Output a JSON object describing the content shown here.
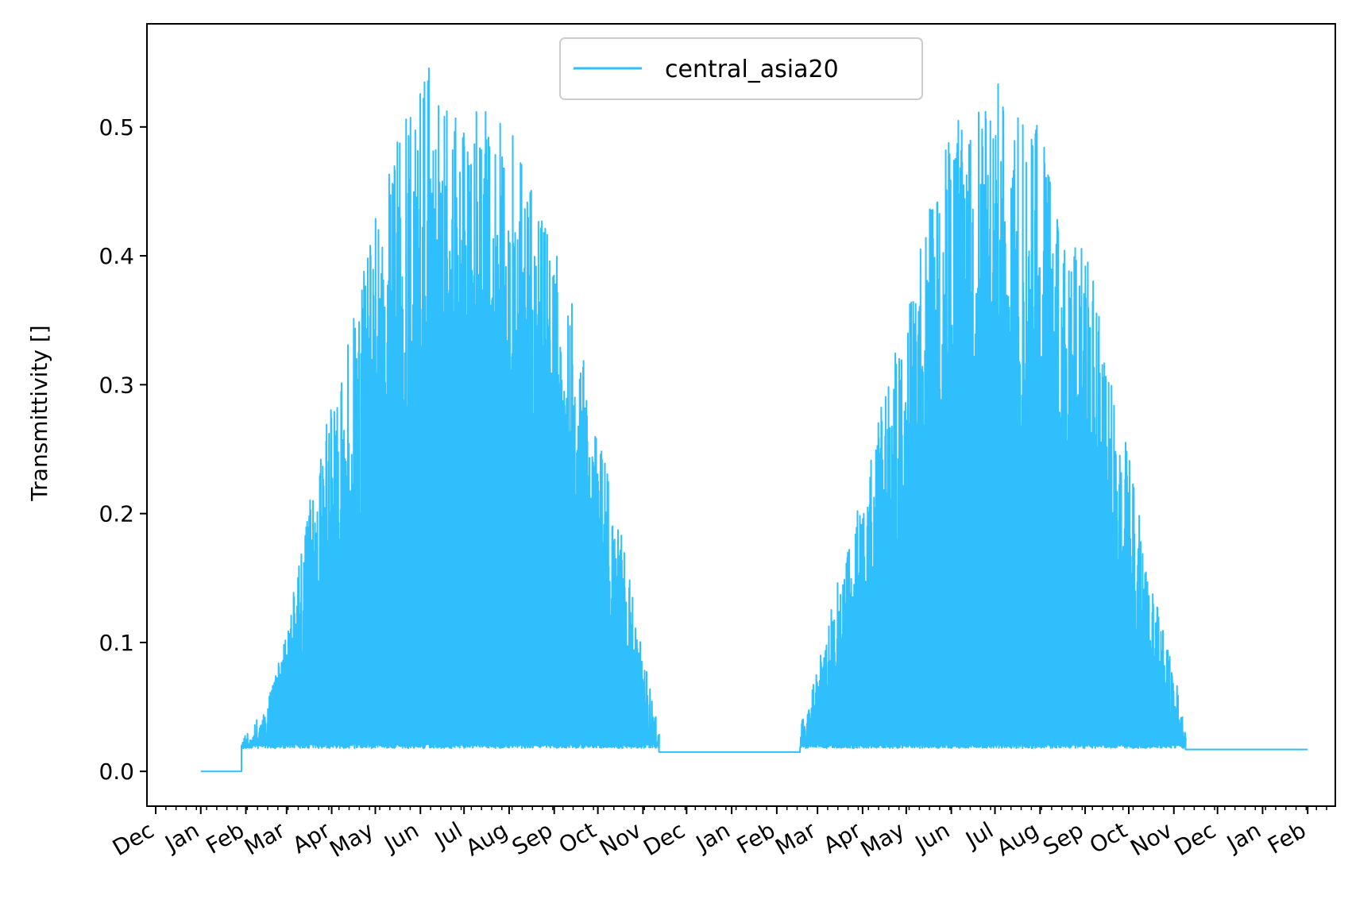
{
  "chart_data": {
    "type": "line",
    "title": "",
    "xlabel": "",
    "ylabel": "Transmittivity []",
    "ylim": [
      -0.027,
      0.58
    ],
    "yticks": [
      0.0,
      0.1,
      0.2,
      0.3,
      0.4,
      0.5
    ],
    "ytick_labels": [
      "0.0",
      "0.1",
      "0.2",
      "0.3",
      "0.4",
      "0.5"
    ],
    "xlim": [
      "2013-11-25",
      "2016-02-20"
    ],
    "x_major_ticks": [
      "2013-12-01",
      "2014-01-01",
      "2014-02-01",
      "2014-03-01",
      "2014-04-01",
      "2014-05-01",
      "2014-06-01",
      "2014-07-01",
      "2014-08-01",
      "2014-09-01",
      "2014-10-01",
      "2014-11-01",
      "2014-12-01",
      "2015-01-01",
      "2015-02-01",
      "2015-03-01",
      "2015-04-01",
      "2015-05-01",
      "2015-06-01",
      "2015-07-01",
      "2015-08-01",
      "2015-09-01",
      "2015-10-01",
      "2015-11-01",
      "2015-12-01",
      "2016-01-01",
      "2016-02-01"
    ],
    "x_tick_labels": [
      "Dec",
      "Jan",
      "Feb",
      "Mar",
      "Apr",
      "May",
      "Jun",
      "Jul",
      "Aug",
      "Sep",
      "Oct",
      "Nov",
      "Dec",
      "Jan",
      "Feb",
      "Mar",
      "Apr",
      "May",
      "Jun",
      "Jul",
      "Aug",
      "Sep",
      "Oct",
      "Nov",
      "Dec",
      "Jan",
      "Feb"
    ],
    "grid": false,
    "legend_location": "upper center",
    "series": [
      {
        "name": "central_asia20",
        "color": "#2ebffc",
        "segments": [
          {
            "kind": "flat",
            "from": "2014-01-01",
            "to": "2014-01-29",
            "value": 0.0
          },
          {
            "kind": "oscillating",
            "from": "2014-01-29",
            "to": "2014-11-12",
            "envelope_dates": [
              "2014-01-29",
              "2014-02-15",
              "2014-03-01",
              "2014-03-15",
              "2014-04-01",
              "2014-04-15",
              "2014-05-01",
              "2014-05-15",
              "2014-06-01",
              "2014-06-08",
              "2014-06-15",
              "2014-07-01",
              "2014-07-15",
              "2014-08-01",
              "2014-08-15",
              "2014-09-01",
              "2014-09-15",
              "2014-10-01",
              "2014-10-15",
              "2014-11-01",
              "2014-11-12"
            ],
            "envelope_max": [
              0.025,
              0.05,
              0.11,
              0.2,
              0.29,
              0.35,
              0.43,
              0.5,
              0.54,
              0.55,
              0.52,
              0.5,
              0.52,
              0.5,
              0.46,
              0.41,
              0.36,
              0.26,
              0.2,
              0.09,
              0.03
            ],
            "baseline": 0.018
          },
          {
            "kind": "flat",
            "from": "2014-11-12",
            "to": "2015-02-17",
            "value": 0.015
          },
          {
            "kind": "oscillating",
            "from": "2015-02-17",
            "to": "2015-11-09",
            "envelope_dates": [
              "2015-02-17",
              "2015-03-01",
              "2015-03-15",
              "2015-04-01",
              "2015-04-15",
              "2015-05-01",
              "2015-05-15",
              "2015-06-01",
              "2015-06-15",
              "2015-07-01",
              "2015-07-08",
              "2015-07-15",
              "2015-08-01",
              "2015-08-15",
              "2015-09-01",
              "2015-09-15",
              "2015-10-01",
              "2015-10-15",
              "2015-11-01",
              "2015-11-09"
            ],
            "envelope_max": [
              0.035,
              0.08,
              0.15,
              0.22,
              0.29,
              0.36,
              0.43,
              0.5,
              0.52,
              0.53,
              0.55,
              0.52,
              0.5,
              0.42,
              0.42,
              0.32,
              0.25,
              0.15,
              0.08,
              0.03
            ],
            "baseline": 0.018
          },
          {
            "kind": "flat",
            "from": "2015-11-09",
            "to": "2016-02-01",
            "value": 0.017
          }
        ]
      }
    ]
  }
}
